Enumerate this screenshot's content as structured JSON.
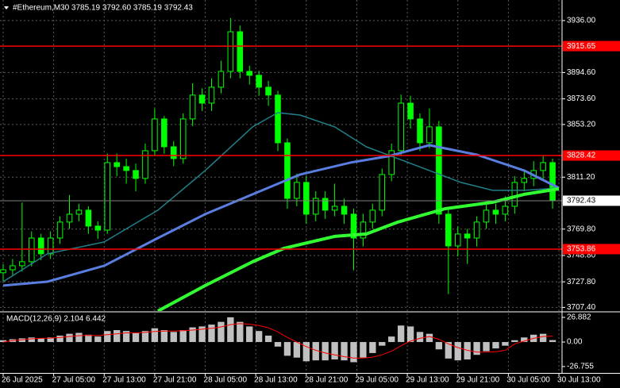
{
  "chart_data": {
    "type": "candlestick",
    "title": "#Ethereum,M30  3785.19 3792.60 3785.19 3792.43",
    "background": "#000000",
    "grid": true,
    "up_color": "#00ff00",
    "down_color": "#00ff00",
    "xlim": [
      -1,
      177
    ],
    "xticks": [
      {
        "value": 0,
        "label": "26 Jul 2025"
      },
      {
        "value": 16,
        "label": "27 Jul 05:00"
      },
      {
        "value": 32,
        "label": "27 Jul 13:00"
      },
      {
        "value": 48,
        "label": "27 Jul 21:00"
      },
      {
        "value": 64,
        "label": "28 Jul 05:00"
      },
      {
        "value": 80,
        "label": "28 Jul 13:00"
      },
      {
        "value": 96,
        "label": "28 Jul 21:00"
      },
      {
        "value": 112,
        "label": "29 Jul 05:00"
      },
      {
        "value": 128,
        "label": "29 Jul 13:00"
      },
      {
        "value": 144,
        "label": "29 Jul 21:00"
      },
      {
        "value": 160,
        "label": "30 Jul 05:00"
      },
      {
        "value": 176,
        "label": "30 Jul 13:00"
      }
    ],
    "ylim": [
      3704.5,
      3952.4
    ],
    "yticks": [
      {
        "value": 3936.0,
        "label": "3936.00"
      },
      {
        "value": 3894.6,
        "label": "3894.60"
      },
      {
        "value": 3873.6,
        "label": "3873.60"
      },
      {
        "value": 3853.2,
        "label": "3853.20"
      },
      {
        "value": 3811.2,
        "label": "3811.20"
      },
      {
        "value": 3769.8,
        "label": "3769.80"
      },
      {
        "value": 3748.8,
        "label": "3748.80"
      },
      {
        "value": 3727.8,
        "label": "3727.80"
      },
      {
        "value": 3707.4,
        "label": "3707.40"
      }
    ],
    "levels": [
      3915.65,
      3828.42,
      3753.86
    ],
    "level_color": "#ff0000",
    "last_price": 3792.43,
    "x": [
      0,
      3,
      6,
      9,
      12,
      15,
      18,
      21,
      24,
      27,
      30,
      33,
      36,
      39,
      42,
      45,
      48,
      51,
      54,
      57,
      60,
      63,
      66,
      69,
      72,
      75,
      78,
      81,
      84,
      87,
      90,
      93,
      96,
      99,
      102,
      105,
      108,
      111,
      114,
      117,
      120,
      123,
      126,
      129,
      132,
      135,
      138,
      141,
      144,
      147,
      150,
      153,
      156,
      159,
      162,
      165,
      168,
      171,
      174
    ],
    "open": [
      3735,
      3737.4,
      3740.6,
      3743.8,
      3762.7,
      3750.1,
      3762.7,
      3775.4,
      3781.7,
      3784.9,
      3772.2,
      3769,
      3822.8,
      3819.6,
      3816.5,
      3810.2,
      3832.3,
      3857.6,
      3835.4,
      3826,
      3857.6,
      3876.6,
      3870.2,
      3882.9,
      3895.5,
      3927.1,
      3895.5,
      3892.4,
      3882.9,
      3876.6,
      3838.6,
      3794.3,
      3807,
      3781.7,
      3794.3,
      3784.9,
      3788,
      3781.7,
      3762.7,
      3775.4,
      3784.9,
      3813.3,
      3832.3,
      3870.2,
      3857.6,
      3838.6,
      3851.3,
      3781.7,
      3756.4,
      3765.9,
      3762.7,
      3775.4,
      3784.9,
      3781.7,
      3788,
      3807,
      3810.2,
      3816.5,
      3822.8
    ],
    "high": [
      3742,
      3746,
      3791,
      3768,
      3766,
      3768,
      3780,
      3797,
      3790,
      3788,
      3776,
      3830,
      3830,
      3826,
      3822,
      3838,
      3866,
      3860,
      3840,
      3862,
      3886,
      3882,
      3890,
      3904,
      3938,
      3932,
      3900,
      3896,
      3888,
      3880,
      3842,
      3814,
      3812,
      3800,
      3800,
      3806,
      3794,
      3786,
      3782,
      3790,
      3818,
      3838,
      3877,
      3876,
      3862,
      3866,
      3856,
      3786,
      3772,
      3770,
      3780,
      3792,
      3790,
      3796,
      3812,
      3816,
      3824,
      3828,
      3826
    ],
    "low": [
      3728,
      3733,
      3736,
      3740,
      3745,
      3746,
      3758,
      3770,
      3776,
      3766,
      3762,
      3766,
      3812,
      3806,
      3800,
      3806,
      3828,
      3830,
      3820,
      3822,
      3852,
      3864,
      3864,
      3878,
      3890,
      3890,
      3885,
      3876,
      3868,
      3832,
      3786,
      3788,
      3774,
      3776,
      3778,
      3780,
      3774,
      3737,
      3756,
      3770,
      3780,
      3808,
      3828,
      3850,
      3832,
      3834,
      3774,
      3718,
      3748,
      3742,
      3756,
      3770,
      3774,
      3776,
      3782,
      3800,
      3804,
      3808,
      3786
    ],
    "close": [
      3737.4,
      3740.6,
      3743.8,
      3762.7,
      3750.1,
      3762.7,
      3775.4,
      3781.7,
      3784.9,
      3772.2,
      3769,
      3822.8,
      3819.6,
      3816.5,
      3810.2,
      3832.3,
      3857.6,
      3835.4,
      3826,
      3857.6,
      3876.6,
      3870.2,
      3882.9,
      3895.5,
      3927.1,
      3895.5,
      3892.4,
      3882.9,
      3876.6,
      3838.6,
      3794.3,
      3807,
      3781.7,
      3794.3,
      3784.9,
      3788,
      3781.7,
      3762.7,
      3775.4,
      3784.9,
      3813.3,
      3832.3,
      3870.2,
      3857.6,
      3838.6,
      3851.3,
      3781.7,
      3756.4,
      3765.9,
      3762.7,
      3775.4,
      3784.9,
      3781.7,
      3788,
      3807,
      3810.2,
      3816.5,
      3822.8,
      3792.43
    ],
    "ma_lines": [
      {
        "color": "#20808a",
        "width": 1.5,
        "x": [
          0,
          14,
          32,
          49,
          64,
          79,
          87,
          94,
          105,
          115,
          125,
          135,
          145,
          155,
          165,
          176
        ],
        "values": [
          3727.9,
          3750.1,
          3759.6,
          3784.9,
          3816.5,
          3851.3,
          3862.6,
          3860.7,
          3851.3,
          3835.4,
          3826.0,
          3816.5,
          3807.0,
          3800.7,
          3800.7,
          3802.6
        ]
      },
      {
        "color": "#5a7de0",
        "width": 3,
        "x": [
          0,
          14,
          32,
          49,
          64,
          79,
          94,
          110,
          122,
          135,
          150,
          165,
          176
        ],
        "values": [
          3724.8,
          3727.9,
          3740.6,
          3762.7,
          3781.7,
          3797.5,
          3813.3,
          3822.8,
          3827.9,
          3836.7,
          3829.1,
          3816.5,
          3802.6
        ]
      },
      {
        "color": "#32ff32",
        "width": 4,
        "x": [
          49,
          64,
          79,
          89,
          105,
          115,
          125,
          140,
          155,
          165,
          176
        ],
        "values": [
          3704.5,
          3724.8,
          3743.8,
          3754.5,
          3764.0,
          3765.9,
          3775.4,
          3786.1,
          3791.2,
          3797.5,
          3801.9
        ]
      }
    ],
    "macd": {
      "title": "MACD(12,26,9) 2.104 6.442",
      "hist_color": "#c0c0c0",
      "signal_color": "#ff0000",
      "ylim": [
        -33.7,
        32.07
      ],
      "yticks": [
        26.882,
        {
          "value": 0,
          "label": "0.00"
        },
        -26.755
      ],
      "histogram": [
        2,
        3,
        4,
        5,
        4,
        5,
        7,
        9,
        10,
        8,
        6,
        12,
        13,
        12,
        10,
        12,
        15,
        13,
        11,
        13,
        16,
        17,
        19,
        22,
        27,
        22,
        17,
        12,
        7,
        -5,
        -15,
        -17,
        -21,
        -20,
        -20,
        -19,
        -20,
        -22,
        -17,
        -12,
        -4,
        6,
        18,
        17,
        11,
        9,
        -8,
        -18,
        -20,
        -19,
        -14,
        -10,
        -7,
        -4,
        2,
        5,
        8,
        9,
        2.104
      ],
      "signal": [
        0,
        1.5,
        2.5,
        3.5,
        4,
        4.3,
        5,
        6,
        7,
        7.3,
        7,
        8,
        9,
        10,
        10,
        10.5,
        11.5,
        12,
        12,
        12.3,
        13,
        14,
        15,
        16.5,
        19,
        20,
        19.5,
        18,
        15.5,
        11,
        5,
        0,
        -5,
        -9,
        -12,
        -14,
        -16,
        -17.5,
        -17.5,
        -16.5,
        -14,
        -10,
        -4,
        1,
        4,
        6,
        3,
        -2,
        -6,
        -9,
        -11,
        -11,
        -10.5,
        -9,
        -2,
        1,
        4,
        6,
        6.442
      ]
    }
  }
}
